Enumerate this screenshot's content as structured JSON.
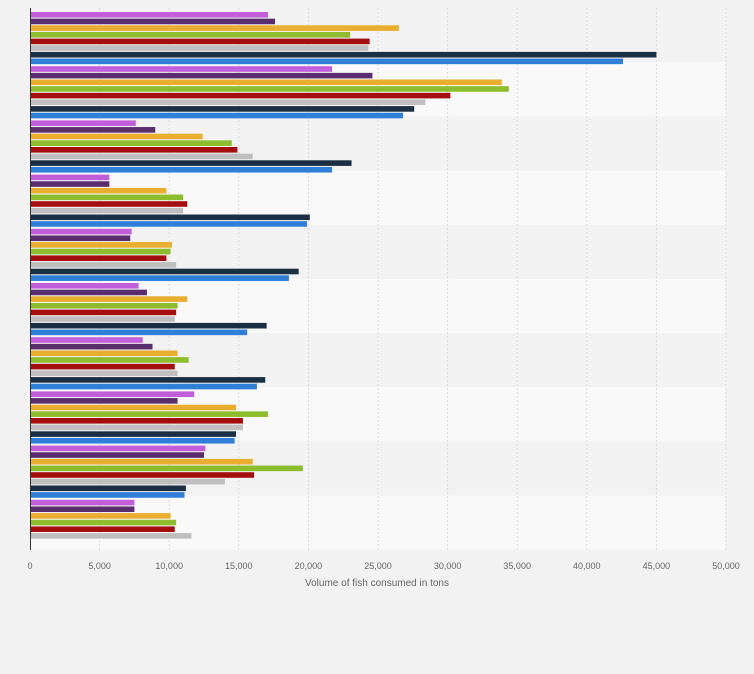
{
  "chart_data": {
    "type": "bar",
    "orientation": "horizontal",
    "categories": [
      "",
      "",
      "",
      "",
      "",
      "",
      "",
      "",
      "",
      ""
    ],
    "xlabel": "Volume of fish consumed in tons",
    "xlim": [
      0,
      50000
    ],
    "xticks": [
      "0",
      "5,000",
      "10,000",
      "15,000",
      "20,000",
      "25,000",
      "30,000",
      "35,000",
      "40,000",
      "45,000",
      "50,000"
    ],
    "xtick_values": [
      0,
      5000,
      10000,
      15000,
      20000,
      25000,
      30000,
      35000,
      40000,
      45000,
      50000
    ],
    "grid": "vertical",
    "legend": "none",
    "series": [
      {
        "color": "#c05fd9",
        "values": [
          17100,
          21700,
          7600,
          5700,
          7300,
          7800,
          8100,
          11800,
          12600,
          7500
        ]
      },
      {
        "color": "#5a2d6e",
        "values": [
          17600,
          24600,
          9000,
          5700,
          7200,
          8400,
          8800,
          10600,
          12500,
          7500
        ]
      },
      {
        "color": "#e9ad2f",
        "values": [
          26500,
          33900,
          12400,
          9800,
          10200,
          11300,
          10600,
          14800,
          16000,
          10100
        ]
      },
      {
        "color": "#8dbd2c",
        "values": [
          23000,
          34400,
          14500,
          11000,
          10100,
          10600,
          11400,
          17100,
          19600,
          10500
        ]
      },
      {
        "color": "#a50e0e",
        "values": [
          24400,
          30200,
          14900,
          11300,
          9800,
          10500,
          10400,
          15300,
          16100,
          10400
        ]
      },
      {
        "color": "#bfbfbf",
        "values": [
          24300,
          28400,
          16000,
          11000,
          10500,
          10400,
          10600,
          15300,
          14000,
          11600
        ]
      },
      {
        "color": "#1a2e44",
        "values": [
          45000,
          27600,
          23100,
          20100,
          19300,
          17000,
          16900,
          14800,
          11200,
          0
        ]
      },
      {
        "color": "#2f7ed8",
        "values": [
          42600,
          26800,
          21700,
          19900,
          18600,
          15600,
          16300,
          14700,
          11100,
          0
        ]
      }
    ]
  }
}
